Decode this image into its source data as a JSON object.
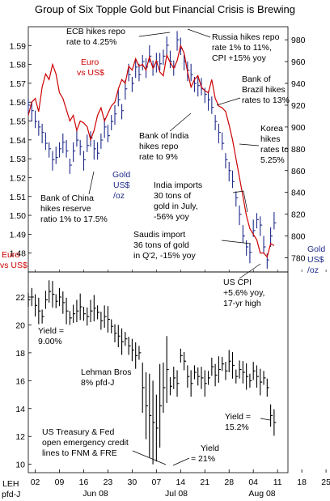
{
  "chart_data": [
    {
      "type": "line",
      "title": "Group of Six Topple Gold but Financial Crisis is Brewing",
      "left_axis": {
        "label": "Euro vs US$",
        "ylim": [
          1.47,
          1.6
        ],
        "ticks": [
          1.48,
          1.49,
          1.5,
          1.51,
          1.52,
          1.53,
          1.54,
          1.55,
          1.56,
          1.57,
          1.58,
          1.59
        ]
      },
      "right_axis": {
        "label": "Gold US$ /oz",
        "ylim": [
          767,
          992
        ],
        "ticks": [
          780,
          800,
          820,
          840,
          860,
          880,
          900,
          920,
          940,
          960,
          980
        ]
      },
      "x_range_days": [
        0,
        75
      ],
      "series": [
        {
          "name": "Euro vs US$",
          "axis": "left",
          "color": "#cc0000",
          "x": [
            0,
            1,
            2,
            3,
            4,
            5,
            6,
            7,
            8,
            9,
            10,
            11,
            12,
            13,
            14,
            15,
            16,
            17,
            18,
            19,
            20,
            21,
            22,
            23,
            24,
            25,
            26,
            27,
            28,
            29,
            30,
            31,
            32,
            33,
            34,
            35,
            36,
            37,
            38,
            39,
            40,
            41,
            42,
            43,
            44,
            45,
            46,
            47,
            48,
            49,
            50,
            51,
            52,
            53,
            54,
            55,
            56,
            57,
            58,
            59,
            60,
            61,
            62,
            63,
            64,
            65,
            66,
            67,
            68,
            69,
            70,
            71
          ],
          "y": [
            1.553,
            1.56,
            1.562,
            1.555,
            1.568,
            1.575,
            1.572,
            1.58,
            1.575,
            1.565,
            1.562,
            1.556,
            1.55,
            1.553,
            1.545,
            1.55,
            1.549,
            1.547,
            1.54,
            1.545,
            1.553,
            1.557,
            1.55,
            1.554,
            1.558,
            1.56,
            1.567,
            1.572,
            1.57,
            1.579,
            1.577,
            1.583,
            1.579,
            1.58,
            1.577,
            1.584,
            1.578,
            1.582,
            1.576,
            1.574,
            1.585,
            1.581,
            1.578,
            1.582,
            1.59,
            1.586,
            1.576,
            1.568,
            1.572,
            1.574,
            1.568,
            1.566,
            1.565,
            1.572,
            1.562,
            1.558,
            1.557,
            1.555,
            1.548,
            1.54,
            1.53,
            1.52,
            1.51,
            1.5,
            1.493,
            1.49,
            1.487,
            1.48,
            1.48,
            1.478,
            1.485,
            1.484
          ]
        },
        {
          "name": "Gold US$ /oz",
          "axis": "right",
          "color": "#1f2a8a",
          "style": "hlc-bars",
          "x": [
            0,
            1,
            2,
            3,
            4,
            5,
            6,
            7,
            8,
            9,
            10,
            11,
            12,
            13,
            14,
            15,
            16,
            17,
            18,
            19,
            20,
            21,
            22,
            23,
            24,
            25,
            26,
            27,
            28,
            29,
            30,
            31,
            32,
            33,
            34,
            35,
            36,
            37,
            38,
            39,
            40,
            41,
            42,
            43,
            44,
            45,
            46,
            47,
            48,
            49,
            50,
            51,
            52,
            53,
            54,
            55,
            56,
            57,
            58,
            59,
            60,
            61,
            62,
            63,
            64,
            65,
            66,
            67,
            68,
            69,
            70,
            71
          ],
          "y": [
            920,
            915,
            905,
            900,
            895,
            885,
            880,
            870,
            872,
            880,
            886,
            878,
            865,
            878,
            888,
            882,
            870,
            883,
            890,
            880,
            876,
            888,
            900,
            892,
            905,
            912,
            925,
            915,
            935,
            948,
            940,
            955,
            948,
            960,
            955,
            965,
            955,
            960,
            958,
            965,
            975,
            960,
            955,
            980,
            972,
            960,
            952,
            948,
            940,
            938,
            935,
            930,
            925,
            918,
            905,
            895,
            885,
            870,
            860,
            850,
            835,
            820,
            800,
            790,
            785,
            805,
            815,
            810,
            790,
            778,
            800,
            812
          ]
        }
      ],
      "x_tick_labels": [
        "02",
        "09",
        "16",
        "23",
        "30",
        "07",
        "14",
        "21",
        "28",
        "04",
        "11",
        "18",
        "25"
      ],
      "months": [
        "Jun 08",
        "Jul 08",
        "Aug 08"
      ],
      "annotations": [
        "ECB hikes repo rate to 4.25%",
        "Russia hikes repo rate 1% to 11%, CPI +15% yoy",
        "Euro vs US$",
        "Bank of Brazil hikes rates to 13%",
        "Bank of India hikes repo rate to 9%",
        "Korea hikes rates to 5.25%",
        "Gold US$ /oz",
        "India imports 30 tons of gold in July, -56% yoy",
        "Bank of China hikes reserve ratio 1% to 17.5%",
        "Saudis import 36 tons of gold in Q'2, -15% yoy"
      ]
    },
    {
      "type": "line",
      "style": "hlc-bars",
      "left_axis": {
        "label": "LEH pfd-J",
        "ylim": [
          9.4,
          23.8
        ],
        "ticks": [
          10,
          12,
          14,
          16,
          18,
          20,
          22
        ]
      },
      "series": [
        {
          "name": "LEH pfd-J",
          "color": "#000000",
          "x": [
            0,
            1,
            2,
            3,
            4,
            5,
            6,
            7,
            8,
            9,
            10,
            11,
            12,
            13,
            14,
            15,
            16,
            17,
            18,
            19,
            20,
            21,
            22,
            23,
            24,
            25,
            26,
            27,
            28,
            29,
            30,
            31,
            32,
            33,
            34,
            35,
            36,
            37,
            38,
            39,
            40,
            41,
            42,
            43,
            44,
            45,
            46,
            47,
            48,
            49,
            50,
            51,
            52,
            53,
            54,
            55,
            56,
            57,
            58,
            59,
            60,
            61,
            62,
            63,
            64,
            65,
            66,
            67,
            68,
            69,
            70,
            71
          ],
          "y": [
            21.8,
            22,
            21.4,
            21,
            20.6,
            21.8,
            22.4,
            22.2,
            21.7,
            22,
            21.6,
            21,
            20.5,
            20.8,
            21,
            21.3,
            20.8,
            20.6,
            21,
            21.2,
            20.9,
            20.3,
            20.6,
            20.4,
            19.9,
            19.4,
            19.2,
            18.8,
            19,
            18.5,
            18.2,
            17.8,
            18,
            15.5,
            14.2,
            13.5,
            13,
            12.6,
            14.2,
            15.5,
            16.8,
            15.6,
            16.2,
            15.8,
            17.8,
            17.4,
            16.3,
            15.8,
            16.6,
            16.3,
            16.2,
            15.8,
            16.2,
            17,
            16.4,
            16.8,
            17.2,
            16.7,
            17.4,
            17.1,
            16.3,
            16.8,
            16.6,
            16.3,
            16,
            16.7,
            16.3,
            15.9,
            16.2,
            15.5,
            13.5,
            13
          ]
        }
      ],
      "annotations": [
        "Yield = 9.00%",
        "Lehman Bros 8% pfd-J",
        "US CPI +5.6% yoy, 17-yr high",
        "Yield = 15.2%",
        "US Treasury & Fed open emergency credit lines to FNM & FRE",
        "Yield = 21%"
      ]
    }
  ],
  "labels": {
    "euro_axis_1": "Euro",
    "euro_axis_2": "vs US$",
    "gold_axis_1": "Gold",
    "gold_axis_2": "US$",
    "gold_axis_3": "/oz",
    "leh_1": "LEH",
    "leh_2": "pfd-J",
    "month_jun": "Jun 08",
    "month_jul": "Jul 08",
    "month_aug": "Aug 08",
    "ecb_1": "ECB hikes repo",
    "ecb_2": "rate to 4.25%",
    "russia_1": "Russia hikes repo",
    "russia_2": "rate 1% to 11%,",
    "russia_3": "CPI +15% yoy",
    "euro_ann_1": "Euro",
    "euro_ann_2": "vs US$",
    "brazil_1": "Bank of",
    "brazil_2": "Brazil hikes",
    "brazil_3": "rates to 13%",
    "india_1": "Bank of India",
    "india_2": "hikes repo",
    "india_3": "rate to 9%",
    "korea_1": "Korea",
    "korea_2": "hikes",
    "korea_3": "rates to",
    "korea_4": "5.25%",
    "gold_ann_1": "Gold",
    "gold_ann_2": "US$",
    "gold_ann_3": "/oz",
    "india_imp_1": "India imports",
    "india_imp_2": "30  tons of",
    "india_imp_3": "gold in July,",
    "india_imp_4": "-56% yoy",
    "china_1": "Bank of China",
    "china_2": "hikes reserve",
    "china_3": "ratio 1% to 17.5%",
    "saudi_1": "Saudis import",
    "saudi_2": "36 tons of gold",
    "saudi_3": "in Q'2, -15% yoy",
    "yield9_1": "Yield =",
    "yield9_2": "9.00%",
    "lehman_1": "Lehman Bros",
    "lehman_2": "8% pfd-J",
    "uscpi_1": "US CPI",
    "uscpi_2": "+5.6% yoy,",
    "uscpi_3": "17-yr high",
    "yield15_1": "Yield =",
    "yield15_2": "15.2%",
    "treasury_1": "US Treasury & Fed",
    "treasury_2": "open emergency credit",
    "treasury_3": "lines to FNM & FRE",
    "yield21_1": "Yield",
    "yield21_2": "= 21%"
  }
}
